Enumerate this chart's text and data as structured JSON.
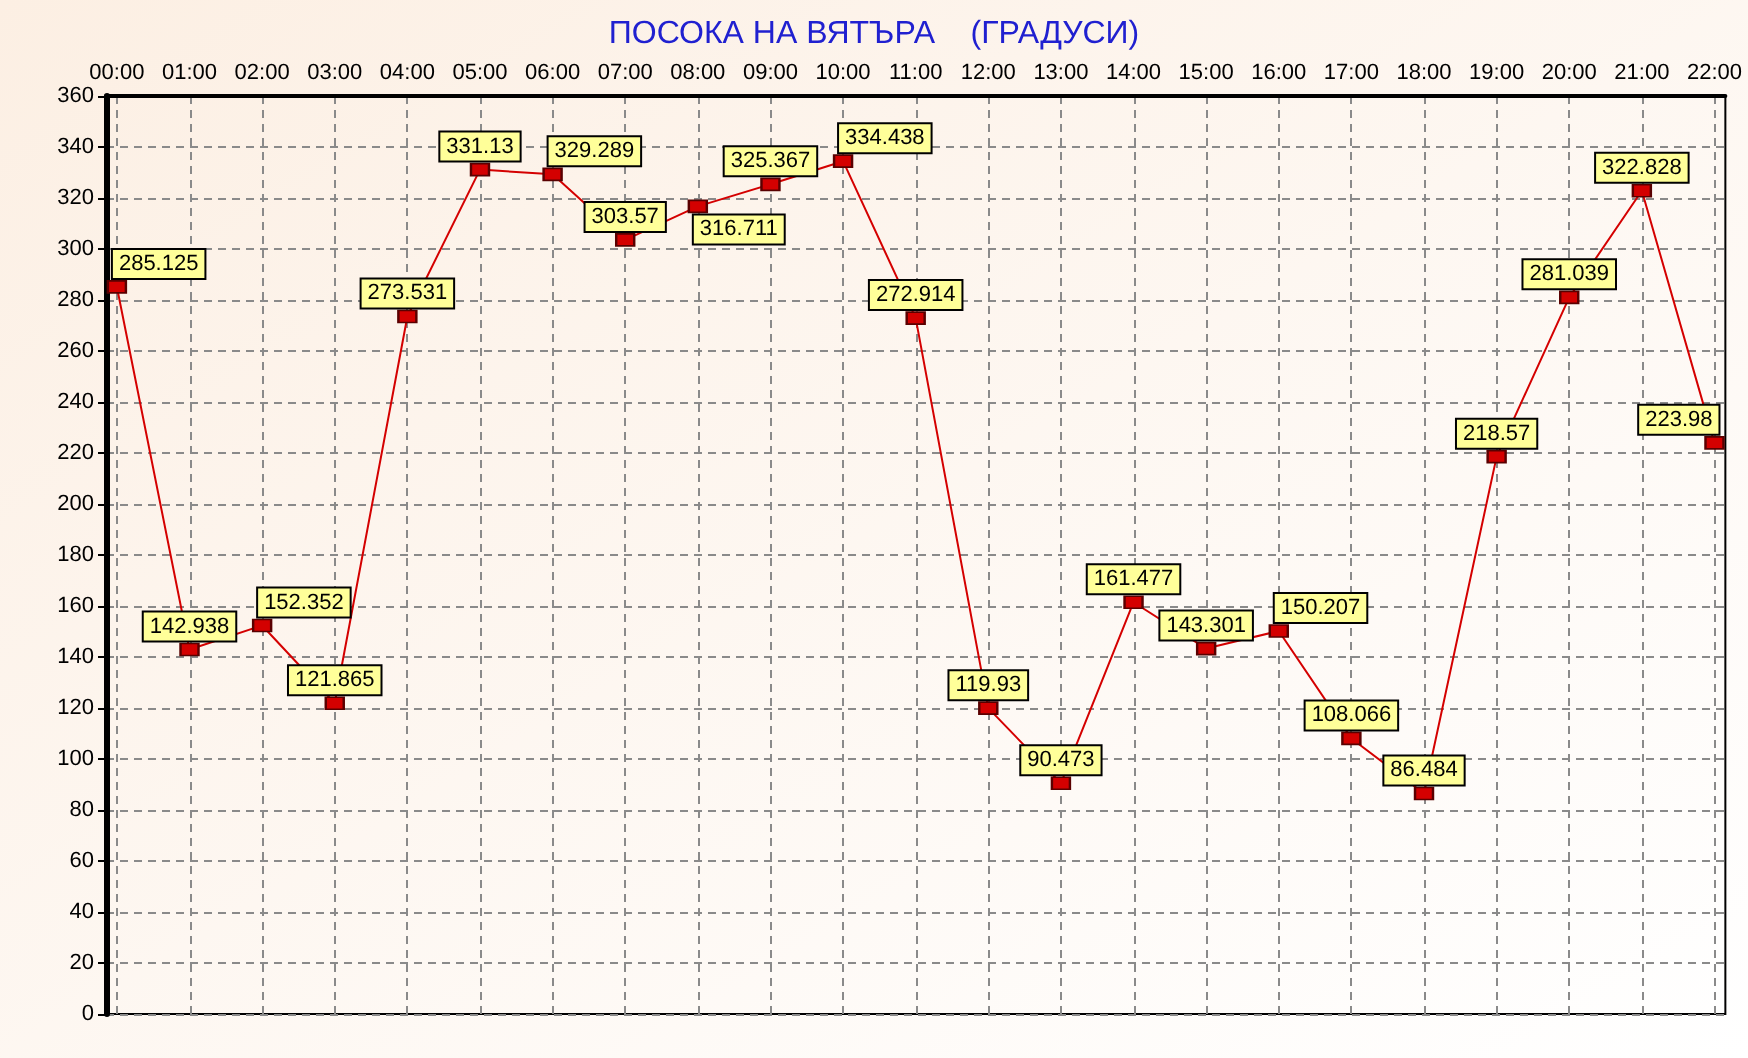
{
  "chart_data": {
    "type": "line",
    "title": "ПОСОКА НА ВЯТЪРА    (ГРАДУСИ)",
    "x": [
      0,
      1,
      2,
      3,
      4,
      5,
      6,
      7,
      8,
      9,
      10,
      11,
      12,
      13,
      14,
      15,
      16,
      17,
      18,
      19,
      20,
      21,
      22
    ],
    "values": [
      285.125,
      142.938,
      152.352,
      121.865,
      273.531,
      331.13,
      329.289,
      303.57,
      316.711,
      325.367,
      334.438,
      272.914,
      119.93,
      90.473,
      161.477,
      143.301,
      150.207,
      108.066,
      86.484,
      218.57,
      281.039,
      322.828,
      223.98
    ],
    "color": "#d40000",
    "xlim": [
      -0.15,
      22.15
    ],
    "xticks": [
      {
        "value": 0,
        "label": "00:00"
      },
      {
        "value": 1,
        "label": "01:00"
      },
      {
        "value": 2,
        "label": "02:00"
      },
      {
        "value": 3,
        "label": "03:00"
      },
      {
        "value": 4,
        "label": "04:00"
      },
      {
        "value": 5,
        "label": "05:00"
      },
      {
        "value": 6,
        "label": "06:00"
      },
      {
        "value": 7,
        "label": "07:00"
      },
      {
        "value": 8,
        "label": "08:00"
      },
      {
        "value": 9,
        "label": "09:00"
      },
      {
        "value": 10,
        "label": "10:00"
      },
      {
        "value": 11,
        "label": "11:00"
      },
      {
        "value": 12,
        "label": "12:00"
      },
      {
        "value": 13,
        "label": "13:00"
      },
      {
        "value": 14,
        "label": "14:00"
      },
      {
        "value": 15,
        "label": "15:00"
      },
      {
        "value": 16,
        "label": "16:00"
      },
      {
        "value": 17,
        "label": "17:00"
      },
      {
        "value": 18,
        "label": "18:00"
      },
      {
        "value": 19,
        "label": "19:00"
      },
      {
        "value": 20,
        "label": "20:00"
      },
      {
        "value": 21,
        "label": "21:00"
      },
      {
        "value": 22,
        "label": "22:00"
      }
    ],
    "ylim": [
      0,
      360
    ],
    "yticks": [
      0,
      20,
      40,
      60,
      80,
      100,
      120,
      140,
      160,
      180,
      200,
      220,
      240,
      260,
      280,
      300,
      320,
      340,
      360
    ],
    "grid": true,
    "marker": "square",
    "line_style": "solid",
    "data_labels": true
  }
}
